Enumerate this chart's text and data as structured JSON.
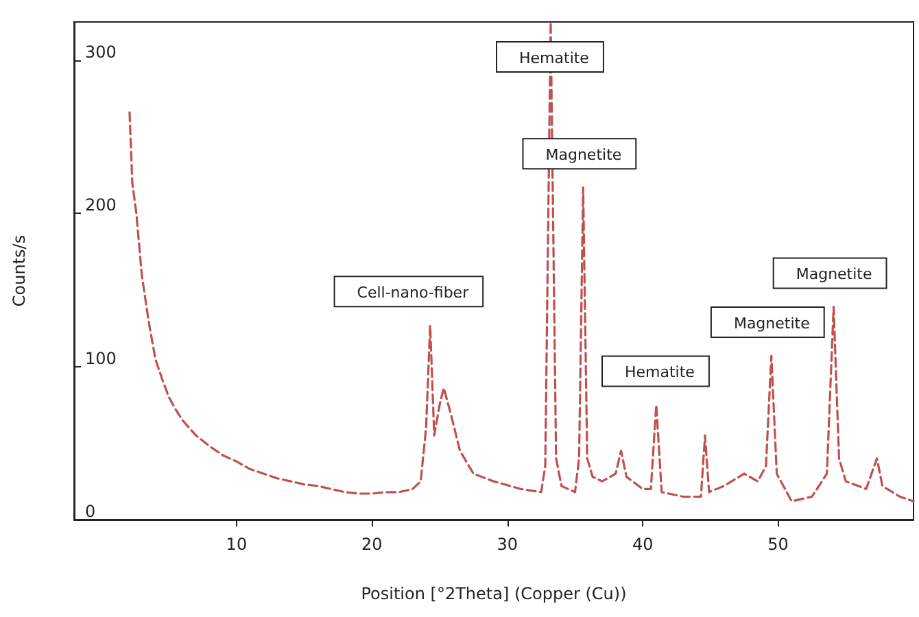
{
  "chart_data": {
    "type": "line",
    "xlabel": "Position [°2Theta] (Copper (Cu))",
    "ylabel": "Counts/s",
    "xlim": [
      -2,
      60
    ],
    "xticks": [
      10,
      20,
      30,
      40,
      50
    ],
    "ylim": [
      0,
      325
    ],
    "yticks": [
      0,
      100,
      200,
      300
    ],
    "grid": false,
    "marker": "none",
    "line_style": "dashed",
    "series": [
      {
        "color": "#c0504d",
        "x": [
          2.1,
          2.3,
          2.6,
          3,
          3.5,
          4,
          4.5,
          5,
          5.5,
          6,
          7,
          8,
          9,
          10,
          11,
          12,
          13,
          14,
          15,
          16,
          17,
          18,
          19,
          20,
          21,
          22,
          23,
          23.6,
          24.0,
          24.3,
          24.6,
          25.0,
          25.3,
          25.8,
          26.5,
          27.5,
          29,
          31,
          32.5,
          32.8,
          33.2,
          33.6,
          34,
          35,
          35.3,
          35.6,
          35.9,
          36.3,
          37,
          38,
          38.4,
          38.8,
          40,
          40.6,
          41,
          41.4,
          43,
          44.3,
          44.6,
          44.9,
          46,
          47.5,
          48.5,
          49.1,
          49.5,
          49.9,
          51,
          52.5,
          53.6,
          54.1,
          54.5,
          55,
          56.5,
          57.3,
          57.7,
          59,
          60
        ],
        "values": [
          266,
          220,
          200,
          160,
          130,
          105,
          92,
          80,
          72,
          65,
          55,
          48,
          42,
          38,
          33,
          30,
          27,
          25,
          23,
          22,
          20,
          18,
          17,
          17,
          18,
          18,
          20,
          25,
          60,
          127,
          55,
          75,
          86,
          70,
          45,
          30,
          25,
          20,
          18,
          35,
          325,
          40,
          22,
          18,
          40,
          217,
          40,
          28,
          25,
          30,
          45,
          28,
          20,
          20,
          75,
          18,
          15,
          15,
          55,
          18,
          22,
          30,
          25,
          35,
          107,
          30,
          12,
          15,
          30,
          139,
          40,
          25,
          20,
          40,
          22,
          15,
          12
        ]
      }
    ],
    "annotations": [
      {
        "text": "Cell-nano-fiber",
        "x": 24.3,
        "y": 127
      },
      {
        "text": "Hematite",
        "x": 33.2,
        "y": 325
      },
      {
        "text": "Magnetite",
        "x": 35.6,
        "y": 217
      },
      {
        "text": "Hematite",
        "x": 41,
        "y": 75
      },
      {
        "text": "Magnetite",
        "x": 49.5,
        "y": 107
      },
      {
        "text": "Magnetite",
        "x": 54.1,
        "y": 139
      }
    ]
  }
}
